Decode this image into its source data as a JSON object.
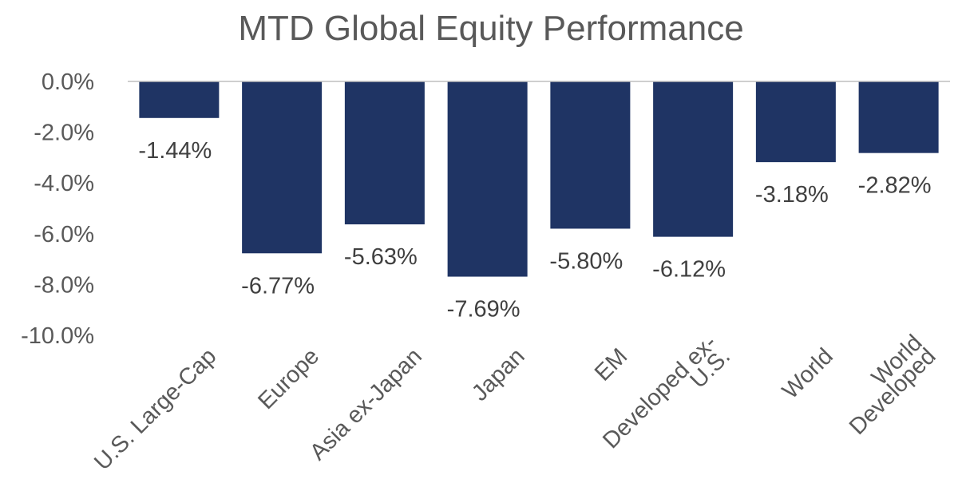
{
  "chart_data": {
    "type": "bar",
    "title": "MTD Global Equity Performance",
    "xlabel": "",
    "ylabel": "",
    "categories": [
      "U.S. Large-Cap",
      "Europe",
      "Asia ex-Japan",
      "Japan",
      "EM",
      "Developed ex-U.S.",
      "World",
      "World Developed"
    ],
    "category_label_lines": [
      [
        "U.S. Large-Cap"
      ],
      [
        "Europe"
      ],
      [
        "Asia ex-Japan"
      ],
      [
        "Japan"
      ],
      [
        "EM"
      ],
      [
        "Developed ex-",
        "U.S."
      ],
      [
        "World"
      ],
      [
        "World",
        "Developed"
      ]
    ],
    "values": [
      -1.44,
      -6.77,
      -5.63,
      -7.69,
      -5.8,
      -6.12,
      -3.18,
      -2.82
    ],
    "data_labels": [
      "-1.44%",
      "-6.77%",
      "-5.63%",
      "-7.69%",
      "-5.80%",
      "-6.12%",
      "-3.18%",
      "-2.82%"
    ],
    "ylim": [
      -10,
      0
    ],
    "yticks": [
      0,
      -2,
      -4,
      -6,
      -8,
      -10
    ],
    "ytick_labels": [
      "0.0%",
      "-2.0%",
      "-4.0%",
      "-6.0%",
      "-8.0%",
      "-10.0%"
    ],
    "grid": false,
    "legend": "none",
    "bar_color": "#1f3464",
    "axis_color": "#bfbfbf"
  }
}
